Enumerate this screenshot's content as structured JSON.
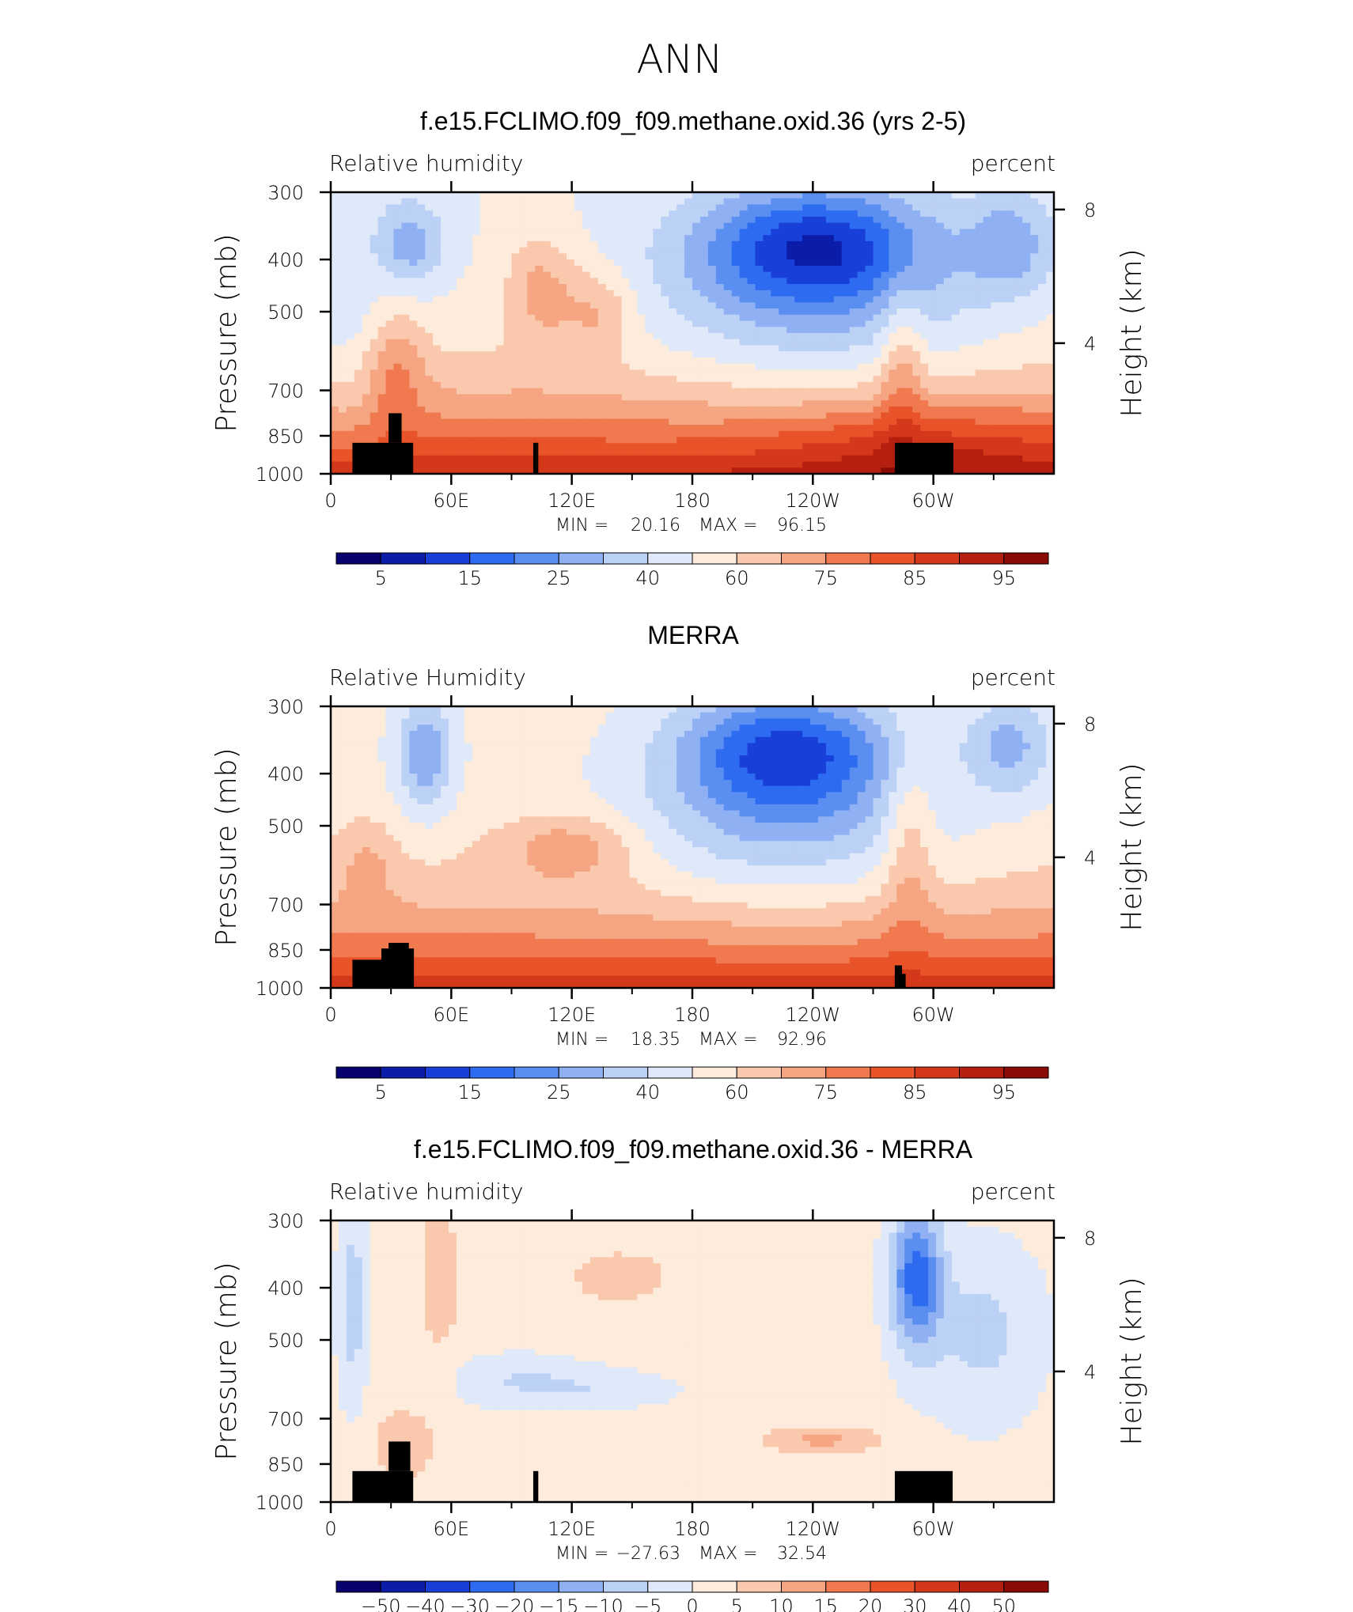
{
  "figure": {
    "title": "ANN",
    "colors": {
      "rh_levels": [
        "#08006e",
        "#0a1ca8",
        "#1840d8",
        "#2d6bf0",
        "#5a8ef0",
        "#8fb1f4",
        "#bcd1f6",
        "#dfe9fa",
        "#fdebdc",
        "#fac9ad",
        "#f6a582",
        "#f0794f",
        "#e8532a",
        "#d4381a",
        "#b51f0f",
        "#8a0b05"
      ],
      "diff_levels": [
        "#08006e",
        "#0a1ca8",
        "#1840d8",
        "#2d6bf0",
        "#5a8ef0",
        "#8fb1f4",
        "#bcd1f6",
        "#dfe9fa",
        "#fdebdc",
        "#fac9ad",
        "#f6a582",
        "#f0794f",
        "#e8532a",
        "#d4381a",
        "#b51f0f",
        "#8a0b05"
      ],
      "land": "#000000"
    }
  },
  "chart_data": [
    {
      "type": "heatmap",
      "title": "f.e15.FCLIMO.f09_f09.methane.oxid.36 (yrs 2-5)",
      "left_label": "Relative humidity",
      "right_label": "percent",
      "ylabel": "Pressure (mb)",
      "ylabel2": "Height (km)",
      "xticks": [
        "0",
        "60E",
        "120E",
        "180",
        "120W",
        "60W"
      ],
      "yticks": [
        "300",
        "400",
        "500",
        "700",
        "850",
        "1000"
      ],
      "yticks2": [
        "8",
        "4"
      ],
      "min_label": "MIN =",
      "min_value": "20.16",
      "max_label": "MAX =",
      "max_value": "96.15",
      "colorbar_labels": [
        "5",
        "15",
        "25",
        "40",
        "60",
        "75",
        "85",
        "95"
      ],
      "x_range": [
        0,
        360
      ],
      "y_range": [
        1000,
        300
      ],
      "y_scale": "log"
    },
    {
      "type": "heatmap",
      "title": "MERRA",
      "left_label": "Relative Humidity",
      "right_label": "percent",
      "ylabel": "Pressure (mb)",
      "ylabel2": "Height (km)",
      "xticks": [
        "0",
        "60E",
        "120E",
        "180",
        "120W",
        "60W"
      ],
      "yticks": [
        "300",
        "400",
        "500",
        "700",
        "850",
        "1000"
      ],
      "yticks2": [
        "8",
        "4"
      ],
      "min_label": "MIN =",
      "min_value": "18.35",
      "max_label": "MAX =",
      "max_value": "92.96",
      "colorbar_labels": [
        "5",
        "15",
        "25",
        "40",
        "60",
        "75",
        "85",
        "95"
      ],
      "x_range": [
        0,
        360
      ],
      "y_range": [
        1000,
        300
      ],
      "y_scale": "log"
    },
    {
      "type": "heatmap",
      "title": "f.e15.FCLIMO.f09_f09.methane.oxid.36 - MERRA",
      "left_label": "Relative humidity",
      "right_label": "percent",
      "ylabel": "Pressure (mb)",
      "ylabel2": "Height (km)",
      "xticks": [
        "0",
        "60E",
        "120E",
        "180",
        "120W",
        "60W"
      ],
      "yticks": [
        "300",
        "400",
        "500",
        "700",
        "850",
        "1000"
      ],
      "yticks2": [
        "8",
        "4"
      ],
      "min_label": "MIN =",
      "min_value": "−27.63",
      "max_label": "MAX =",
      "max_value": "32.54",
      "colorbar_labels": [
        "−50",
        "−40",
        "−30",
        "−20",
        "−15",
        "−10",
        "−5",
        "0",
        "5",
        "10",
        "15",
        "20",
        "30",
        "40",
        "50"
      ],
      "x_range": [
        0,
        360
      ],
      "y_range": [
        1000,
        300
      ],
      "y_scale": "log"
    }
  ]
}
